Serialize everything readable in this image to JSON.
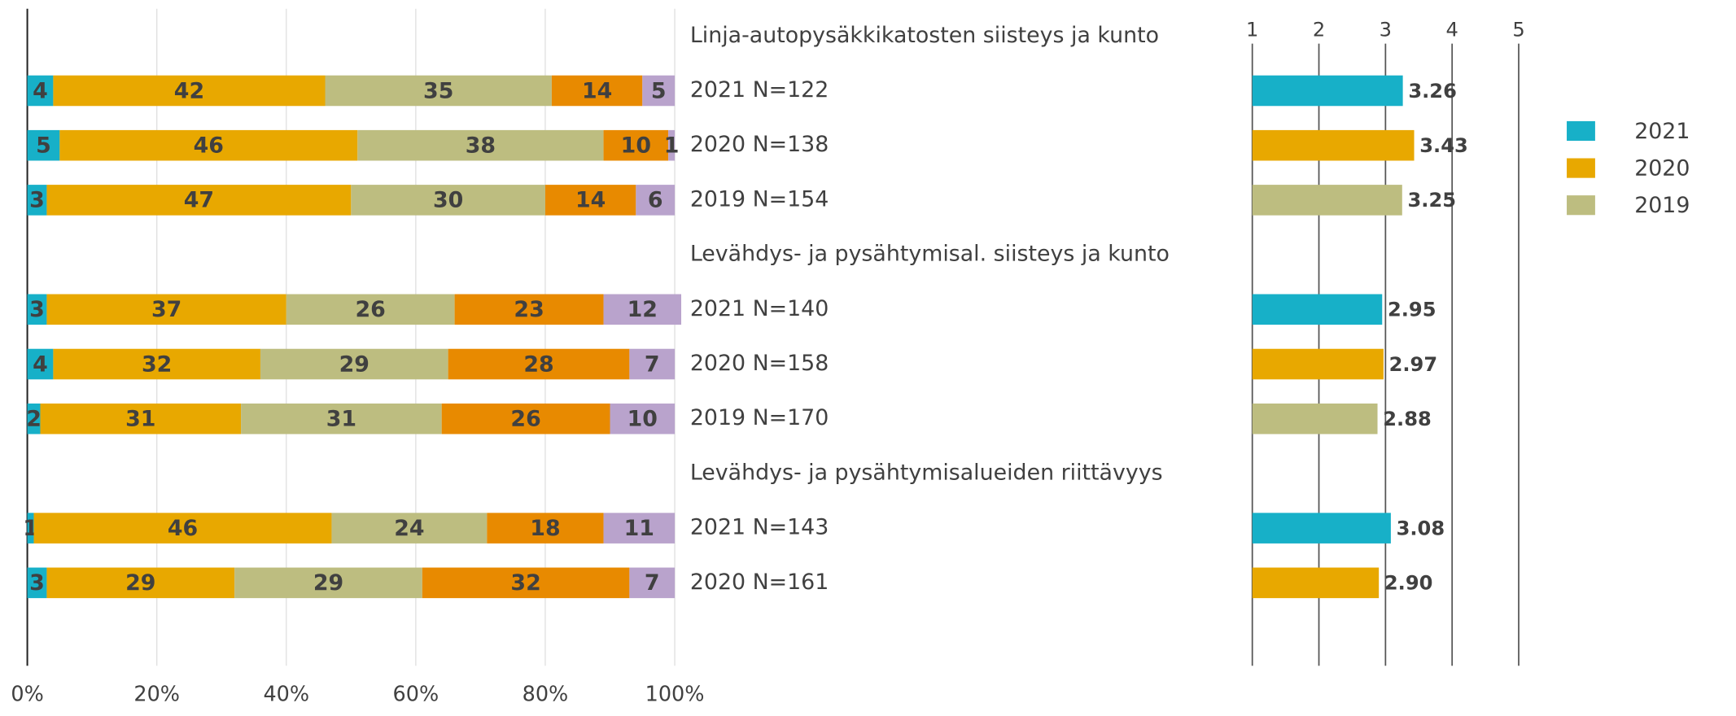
{
  "chart_data": [
    {
      "type": "stacked_bar_horizontal",
      "categories": [
        "Linja-autopysäkkikatosten siisteys ja kunto",
        "2021 N=122",
        "2020 N=138",
        "2019 N=154",
        "Levähdys- ja pysähtymisal. siisteys ja kunto",
        "2021 N=140",
        "2020 N=158",
        "2019 N=170",
        "Levähdys- ja pysähtymisalueiden riittävyys",
        "2021 N=143",
        "2020 N=161"
      ],
      "series": [
        {
          "color": "#17b0c8",
          "values": [
            null,
            4,
            5,
            3,
            null,
            3,
            4,
            2,
            null,
            1,
            3
          ]
        },
        {
          "color": "#e8a800",
          "values": [
            null,
            42,
            46,
            47,
            null,
            37,
            32,
            31,
            null,
            46,
            29
          ]
        },
        {
          "color": "#bdbd80",
          "values": [
            null,
            35,
            38,
            30,
            null,
            26,
            29,
            31,
            null,
            24,
            29
          ]
        },
        {
          "color": "#e88a00",
          "values": [
            null,
            14,
            10,
            14,
            null,
            23,
            28,
            26,
            null,
            18,
            32
          ]
        },
        {
          "color": "#b9a3cc",
          "values": [
            null,
            5,
            1,
            6,
            null,
            12,
            7,
            10,
            null,
            11,
            7
          ]
        }
      ],
      "xlim": [
        0,
        100
      ],
      "xticks": [
        {
          "value": 0,
          "label": "0%"
        },
        {
          "value": 20,
          "label": "20%"
        },
        {
          "value": 40,
          "label": "40%"
        },
        {
          "value": 60,
          "label": "60%"
        },
        {
          "value": 80,
          "label": "80%"
        },
        {
          "value": 100,
          "label": "100%"
        }
      ],
      "grid": true
    },
    {
      "type": "bar_horizontal",
      "series": [
        {
          "name": "2021",
          "color": "#17b0c8",
          "values": [
            null,
            3.26,
            null,
            null,
            null,
            2.95,
            null,
            null,
            null,
            3.08,
            null
          ],
          "value_labels": [
            null,
            "3.26",
            null,
            null,
            null,
            "2.95",
            null,
            null,
            null,
            "3.08",
            null
          ]
        },
        {
          "name": "2020",
          "color": "#e8a800",
          "values": [
            null,
            null,
            3.43,
            null,
            null,
            null,
            2.97,
            null,
            null,
            null,
            2.9
          ],
          "value_labels": [
            null,
            null,
            "3.43",
            null,
            null,
            null,
            "2.97",
            null,
            null,
            null,
            "2.90"
          ]
        },
        {
          "name": "2019",
          "color": "#bdbd80",
          "values": [
            null,
            null,
            null,
            3.25,
            null,
            null,
            null,
            2.88,
            null,
            null,
            null
          ],
          "value_labels": [
            null,
            null,
            null,
            "3.25",
            null,
            null,
            null,
            "2.88",
            null,
            null,
            null
          ]
        }
      ],
      "xlim": [
        1,
        5
      ],
      "xticks": [
        1,
        2,
        3,
        4,
        5
      ],
      "grid": true,
      "legend": "right"
    }
  ]
}
